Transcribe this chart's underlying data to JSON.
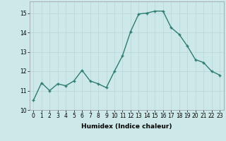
{
  "x": [
    0,
    1,
    2,
    3,
    4,
    5,
    6,
    7,
    8,
    9,
    10,
    11,
    12,
    13,
    14,
    15,
    16,
    17,
    18,
    19,
    20,
    21,
    22,
    23
  ],
  "y": [
    10.5,
    11.4,
    11.0,
    11.35,
    11.25,
    11.5,
    12.05,
    11.5,
    11.35,
    11.15,
    12.0,
    12.8,
    14.05,
    14.95,
    15.0,
    15.1,
    15.1,
    14.25,
    13.9,
    13.3,
    12.6,
    12.45,
    12.0,
    11.8
  ],
  "line_color": "#2e7d6e",
  "marker": "+",
  "marker_size": 3,
  "marker_linewidth": 1.0,
  "line_width": 1.0,
  "background_color": "#cde8e8",
  "grid_color": "#b8d4d4",
  "xlabel": "Humidex (Indice chaleur)",
  "xlim": [
    -0.5,
    23.5
  ],
  "ylim": [
    10.0,
    15.6
  ],
  "yticks": [
    10,
    11,
    12,
    13,
    14,
    15
  ],
  "xticks": [
    0,
    1,
    2,
    3,
    4,
    5,
    6,
    7,
    8,
    9,
    10,
    11,
    12,
    13,
    14,
    15,
    16,
    17,
    18,
    19,
    20,
    21,
    22,
    23
  ],
  "tick_fontsize": 5.5,
  "label_fontsize": 6.5
}
